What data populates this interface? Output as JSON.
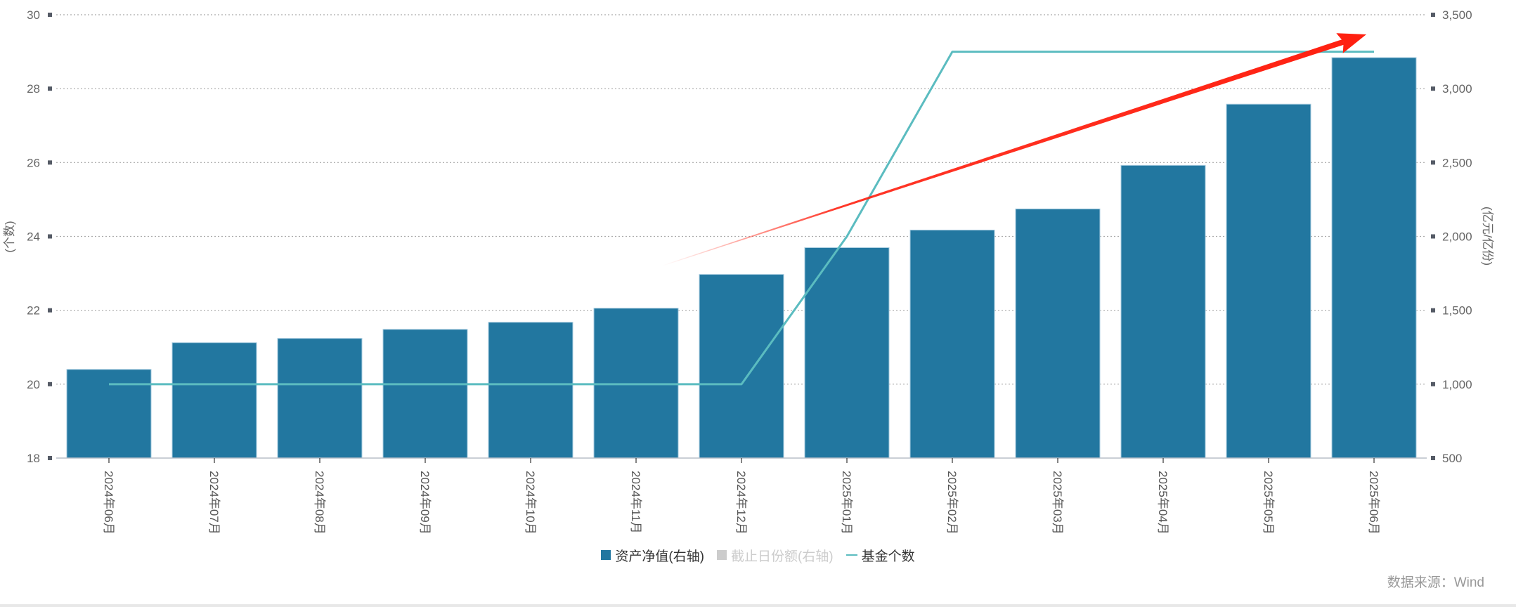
{
  "chart_data": {
    "type": "bar",
    "title": "",
    "categories": [
      "2024年06月",
      "2024年07月",
      "2024年08月",
      "2024年09月",
      "2024年10月",
      "2024年11月",
      "2024年12月",
      "2025年01月",
      "2025年02月",
      "2025年03月",
      "2025年04月",
      "2025年05月",
      "2025年06月"
    ],
    "series": [
      {
        "name": "资产净值(右轴)",
        "type": "bar",
        "axis": "right",
        "color": "#2277a0",
        "enabled": true,
        "values": [
          1100,
          1281,
          1310,
          1371,
          1419,
          1514,
          1743,
          1924,
          2043,
          2186,
          2481,
          2895,
          3210
        ]
      },
      {
        "name": "截止日份额(右轴)",
        "type": "bar",
        "axis": "right",
        "color": "#cccccc",
        "enabled": false,
        "values": []
      },
      {
        "name": "基金个数",
        "type": "line",
        "axis": "left",
        "color": "#5bbcc0",
        "enabled": true,
        "values": [
          20,
          20,
          20,
          20,
          20,
          20,
          20,
          24,
          29,
          29,
          29,
          29,
          29
        ]
      }
    ],
    "xlabel": "",
    "ylabel_left": "(个数)",
    "ylabel_right": "(亿元/亿份)",
    "ylim_left": [
      18,
      30
    ],
    "yticks_left": [
      18,
      20,
      22,
      24,
      26,
      28,
      30
    ],
    "ylim_right": [
      500,
      3500
    ],
    "yticks_right": [
      500,
      1000,
      1500,
      2000,
      2500,
      3000,
      3500
    ],
    "yticks_right_labels": [
      "500",
      "1,000",
      "1,500",
      "2,000",
      "2,500",
      "3,000",
      "3,500"
    ],
    "grid": true,
    "legend_position": "bottom",
    "annotations": [
      {
        "type": "arrow",
        "color": "#ff2010",
        "description": "upward trend arrow from 2024-12 to 2025-06"
      }
    ]
  },
  "legend": {
    "items": [
      {
        "label": "资产净值(右轴)",
        "color": "#2277a0",
        "kind": "square",
        "enabled": true
      },
      {
        "label": "截止日份额(右轴)",
        "color": "#cccccc",
        "kind": "square",
        "enabled": false
      },
      {
        "label": "基金个数",
        "color": "#5bbcc0",
        "kind": "line",
        "enabled": true
      }
    ]
  },
  "source": "数据来源：Wind",
  "colors": {
    "bar": "#2277a0",
    "line": "#5bbcc0",
    "arrow": "#ff2010",
    "grid": "#aaaaaa",
    "axis_text": "#666666"
  }
}
